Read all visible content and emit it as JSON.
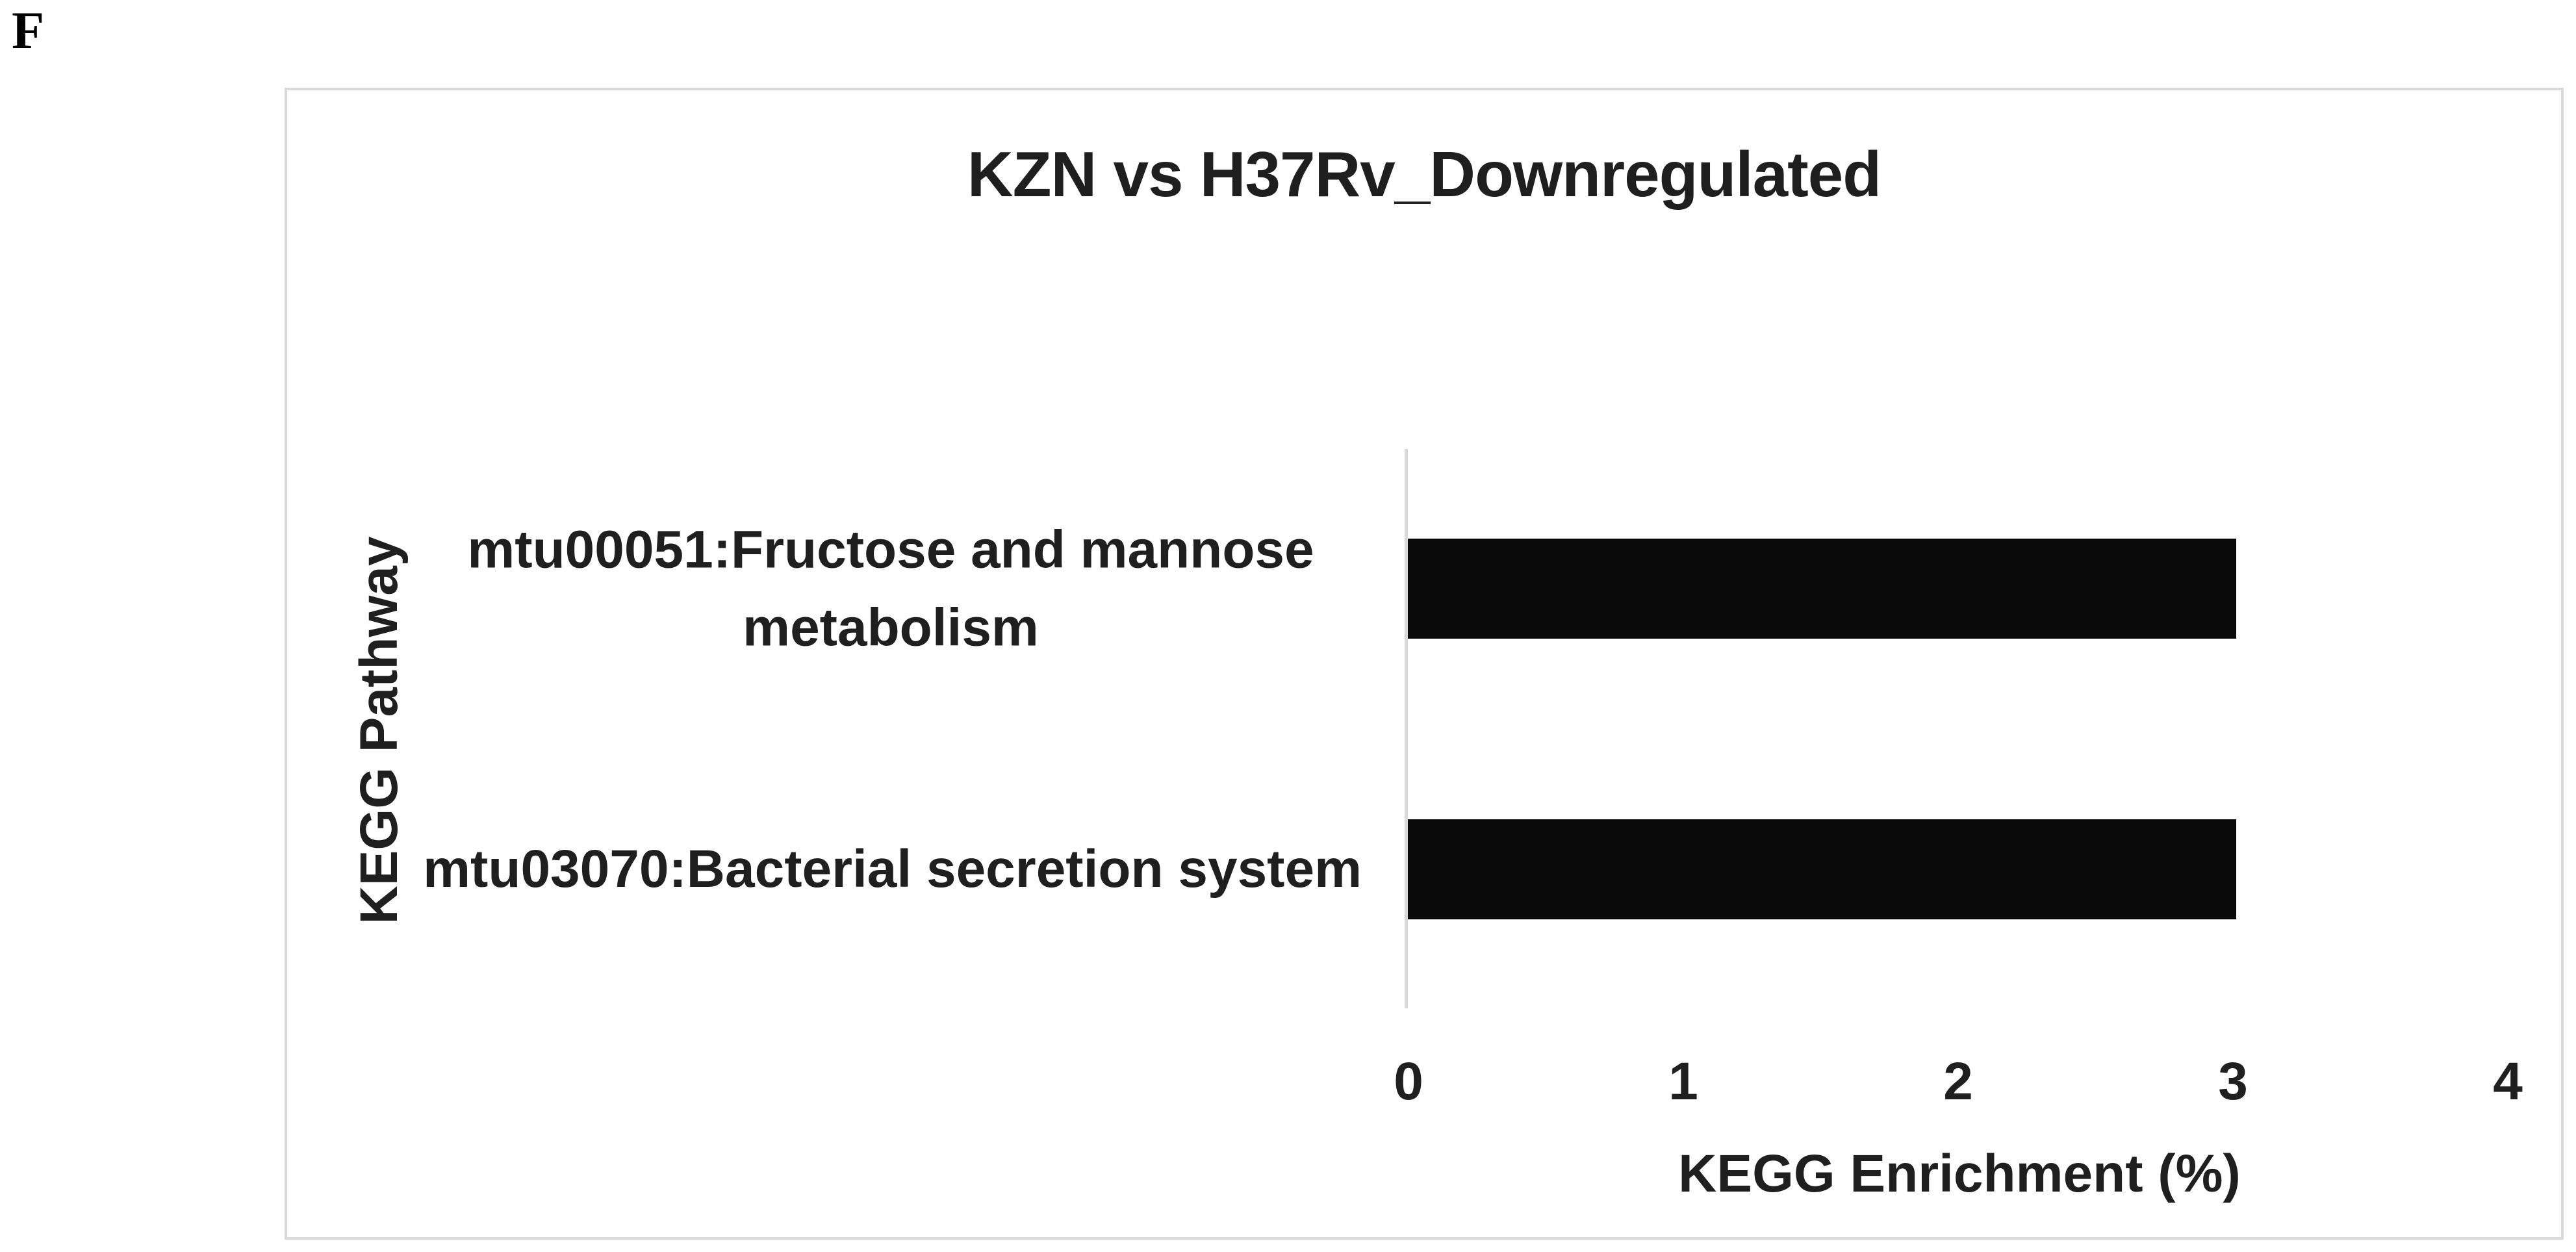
{
  "panel_label": "F",
  "chart_data": {
    "type": "bar",
    "orientation": "horizontal",
    "title": "KZN vs H37Rv_Downregulated",
    "categories": [
      "mtu00051:Fructose and mannose metabolism",
      "mtu03070:Bacterial secretion system"
    ],
    "values": [
      3,
      3
    ],
    "xlabel": "KEGG Enrichment (%)",
    "ylabel": "KEGG Pathway",
    "xlim": [
      0,
      4
    ],
    "x_ticks": [
      "0",
      "1",
      "2",
      "3",
      "4"
    ],
    "grid": false,
    "legend_position": "none",
    "colors": {
      "bar": "#0a0a0a",
      "text": "#1f1f1f",
      "axis_line": "#d9d9d9",
      "frame_border": "#d9d9d9"
    }
  }
}
